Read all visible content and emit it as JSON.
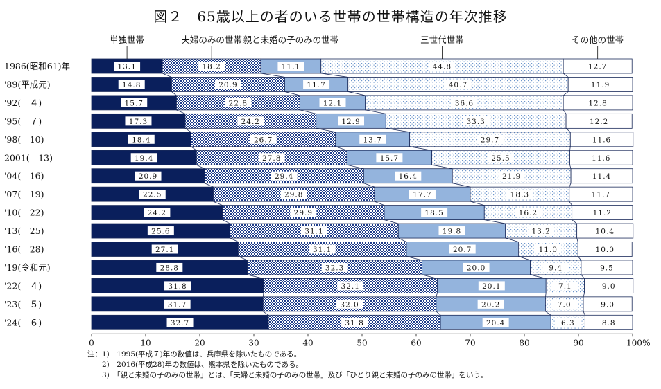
{
  "title": "図２　65歳以上の者のいる世帯の世帯構造の年次推移",
  "notes": [
    "注：1)　1995(平成７)年の数値は、兵庫県を除いたものである。",
    "　　2)　2016(平成28)年の数値は、熊本県を除いたものである。",
    "　　3)　「親と未婚の子のみの世帯」とは、「夫婦と未婚の子のみの世帯」及び「ひとり親と未婚の子のみの世帯」をいう。"
  ],
  "chart_data": {
    "type": "bar",
    "orientation": "horizontal",
    "stacked": true,
    "percent": true,
    "xlim": [
      0,
      100
    ],
    "xticks": [
      "0",
      "10",
      "20",
      "30",
      "40",
      "50",
      "60",
      "70",
      "80",
      "90",
      "100％"
    ],
    "categories": [
      "1986(昭和61)年",
      "'89(平成元)",
      "'92(　４)",
      "'95(　７)",
      "'98(　10)",
      "2001(　13)",
      "'04(　16)",
      "'07(　19)",
      "'10(　22)",
      "'13(　25)",
      "'16(　28)",
      "'19(令和元)",
      "'22(　４)",
      "'23(　５)",
      "'24(　６)"
    ],
    "series": [
      {
        "name": "単独世帯",
        "color": "#0a1f5c",
        "pattern": "solid",
        "values": [
          13.1,
          14.8,
          15.7,
          17.3,
          18.4,
          19.4,
          20.9,
          22.5,
          24.2,
          25.6,
          27.1,
          28.8,
          31.8,
          31.7,
          32.7
        ]
      },
      {
        "name": "夫婦のみの世帯",
        "color": "#1f3d8a",
        "pattern": "checker",
        "values": [
          18.2,
          20.9,
          22.8,
          24.2,
          26.7,
          27.8,
          29.4,
          29.8,
          29.9,
          31.1,
          31.1,
          32.3,
          32.1,
          32.0,
          31.8
        ]
      },
      {
        "name": "親と未婚の子のみの世帯",
        "color": "#94b4dd",
        "pattern": "solid",
        "values": [
          11.1,
          11.7,
          12.1,
          12.9,
          13.7,
          15.7,
          16.4,
          17.7,
          18.5,
          19.8,
          20.7,
          20.0,
          20.1,
          20.2,
          20.4
        ]
      },
      {
        "name": "三世代世帯",
        "color": "#6d96cc",
        "pattern": "dots",
        "values": [
          44.8,
          40.7,
          36.6,
          33.3,
          29.7,
          25.5,
          21.9,
          18.3,
          16.2,
          13.2,
          11.0,
          9.4,
          7.1,
          7.0,
          6.3
        ]
      },
      {
        "name": "その他の世帯",
        "color": "#ffffff",
        "pattern": "solid",
        "values": [
          12.7,
          11.9,
          12.8,
          12.2,
          11.6,
          11.6,
          11.4,
          11.7,
          11.2,
          10.4,
          10.0,
          9.5,
          9.0,
          9.0,
          8.8
        ]
      }
    ],
    "legend_placement": "top",
    "grid": false
  }
}
